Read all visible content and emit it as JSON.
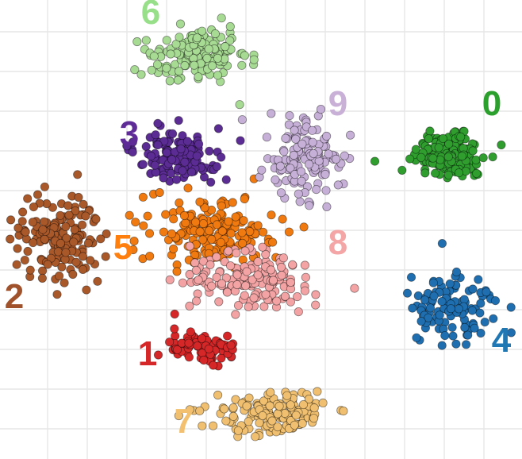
{
  "chart_data": {
    "type": "scatter",
    "title": "",
    "xlabel": "",
    "ylabel": "",
    "grid": true,
    "axes_visible": false,
    "marker": "filled-circle",
    "clusters": [
      {
        "label": "0",
        "color": "#2ca02c",
        "fill": "#2f9e2f",
        "center": [
          567,
          195
        ],
        "spread": [
          52,
          38
        ],
        "count": 150,
        "label_anchor": [
          620,
          145
        ]
      },
      {
        "label": "1",
        "color": "#d62728",
        "fill": "#d62728",
        "center": [
          255,
          437
        ],
        "spread": [
          50,
          22
        ],
        "count": 90,
        "label_anchor": [
          186,
          460
        ]
      },
      {
        "label": "2",
        "color": "#a0522d",
        "fill": "#a9582a",
        "center": [
          75,
          300
        ],
        "spread": [
          55,
          62
        ],
        "count": 150,
        "label_anchor": [
          18,
          388
        ]
      },
      {
        "label": "3",
        "color": "#5e2b97",
        "fill": "#5b2c94",
        "center": [
          225,
          195
        ],
        "spread": [
          62,
          35
        ],
        "count": 130,
        "label_anchor": [
          163,
          183
        ]
      },
      {
        "label": "4",
        "color": "#1f77b4",
        "fill": "#1f6fb0",
        "center": [
          570,
          390
        ],
        "spread": [
          55,
          48
        ],
        "count": 110,
        "label_anchor": [
          632,
          443
        ]
      },
      {
        "label": "5",
        "color": "#ff7f0e",
        "fill": "#f07a10",
        "center": [
          265,
          290
        ],
        "spread": [
          90,
          48
        ],
        "count": 170,
        "label_anchor": [
          155,
          326
        ]
      },
      {
        "label": "6",
        "color": "#98df8a",
        "fill": "#a7da93",
        "center": [
          250,
          70
        ],
        "spread": [
          70,
          40
        ],
        "count": 150,
        "label_anchor": [
          190,
          30
        ]
      },
      {
        "label": "7",
        "color": "#f2c06f",
        "fill": "#f0c070",
        "center": [
          345,
          520
        ],
        "spread": [
          85,
          32
        ],
        "count": 150,
        "label_anchor": [
          232,
          545
        ]
      },
      {
        "label": "8",
        "color": "#f4a6a6",
        "fill": "#f3a3a3",
        "center": [
          320,
          355
        ],
        "spread": [
          88,
          42
        ],
        "count": 160,
        "label_anchor": [
          426,
          320
        ]
      },
      {
        "label": "9",
        "color": "#c9b0d6",
        "fill": "#c7b0d8",
        "center": [
          385,
          200
        ],
        "spread": [
          55,
          52
        ],
        "count": 140,
        "label_anchor": [
          426,
          145
        ]
      }
    ]
  }
}
